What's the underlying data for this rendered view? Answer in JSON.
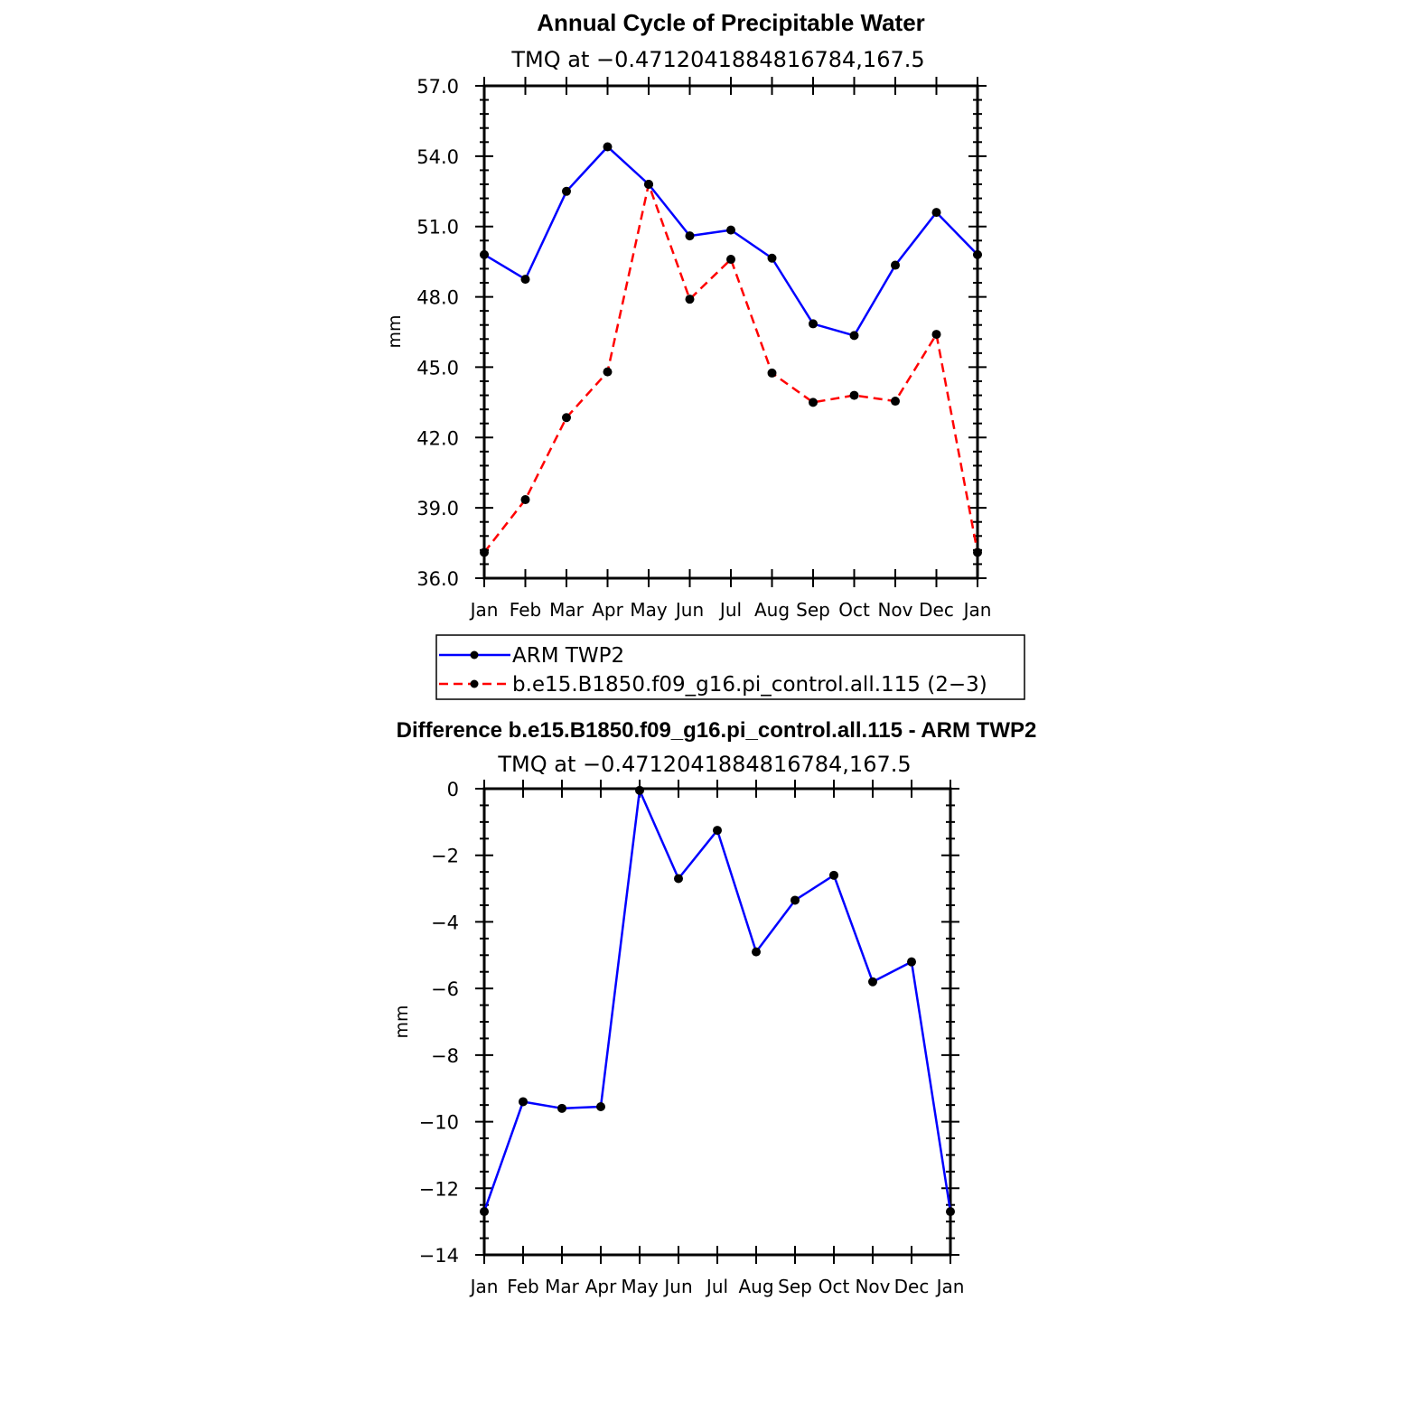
{
  "chart_data": [
    {
      "type": "line",
      "title": "Annual Cycle of Precipitable Water",
      "subtitle": "TMQ at −0.4712041884816784,167.5",
      "xlabel": "",
      "ylabel": "mm",
      "categories": [
        "Jan",
        "Feb",
        "Mar",
        "Apr",
        "May",
        "Jun",
        "Jul",
        "Aug",
        "Sep",
        "Oct",
        "Nov",
        "Dec",
        "Jan"
      ],
      "ylim": [
        36.0,
        57.0
      ],
      "yticks": [
        36.0,
        39.0,
        42.0,
        45.0,
        48.0,
        51.0,
        54.0,
        57.0
      ],
      "ytick_labels": [
        "36.0",
        "39.0",
        "42.0",
        "45.0",
        "48.0",
        "51.0",
        "54.0",
        "57.0"
      ],
      "series": [
        {
          "name": "ARM TWP2",
          "color": "#0000ff",
          "dash": "solid",
          "values": [
            49.8,
            48.75,
            52.5,
            54.4,
            52.8,
            50.6,
            50.85,
            49.65,
            46.85,
            46.35,
            49.35,
            51.6,
            49.8
          ]
        },
        {
          "name": "b.e15.B1850.f09_g16.pi_control.all.115 (2−3)",
          "color": "#ff0000",
          "dash": "dashed",
          "values": [
            37.1,
            39.35,
            42.85,
            44.8,
            52.8,
            47.9,
            49.6,
            44.75,
            43.5,
            43.8,
            43.55,
            46.4,
            37.1
          ]
        }
      ],
      "legend_position": "below"
    },
    {
      "type": "line",
      "title": "Difference b.e15.B1850.f09_g16.pi_control.all.115 - ARM TWP2",
      "subtitle": "TMQ at −0.4712041884816784,167.5",
      "xlabel": "",
      "ylabel": "mm",
      "categories": [
        "Jan",
        "Feb",
        "Mar",
        "Apr",
        "May",
        "Jun",
        "Jul",
        "Aug",
        "Sep",
        "Oct",
        "Nov",
        "Dec",
        "Jan"
      ],
      "ylim": [
        -14,
        0
      ],
      "yticks": [
        -14,
        -12,
        -10,
        -8,
        -6,
        -4,
        -2,
        0
      ],
      "ytick_labels": [
        "−14",
        "−12",
        "−10",
        "−8",
        "−6",
        "−4",
        "−2",
        "0"
      ],
      "series": [
        {
          "name": "Difference",
          "color": "#0000ff",
          "dash": "solid",
          "values": [
            -12.7,
            -9.4,
            -9.6,
            -9.55,
            -0.05,
            -2.7,
            -1.25,
            -4.9,
            -3.35,
            -2.6,
            -5.8,
            -5.2,
            -12.7
          ]
        }
      ]
    }
  ]
}
